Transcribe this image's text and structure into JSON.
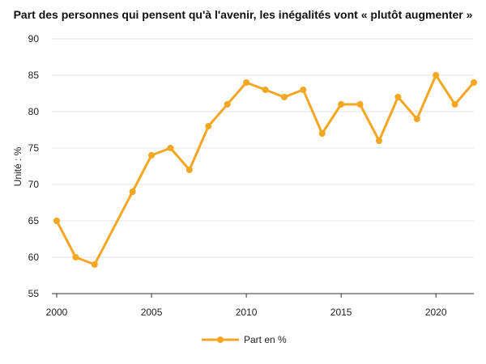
{
  "chart_data": {
    "type": "line",
    "title": "Part des personnes qui pensent qu'à l'avenir, les inégalités vont « plutôt augmenter »",
    "xlabel": "",
    "ylabel": "Unité : %",
    "ylim": [
      55,
      90
    ],
    "yticks": [
      55,
      60,
      65,
      70,
      75,
      80,
      85,
      90
    ],
    "xlim": [
      2000,
      2022
    ],
    "xticks": [
      2000,
      2005,
      2010,
      2015,
      2020
    ],
    "grid": "horizontal",
    "legend_position": "bottom-center",
    "color": "#f5a623",
    "series": [
      {
        "name": "Part en %",
        "points": [
          [
            2000,
            65
          ],
          [
            2001,
            60
          ],
          [
            2002,
            59
          ],
          [
            2004,
            69
          ],
          [
            2005,
            74
          ],
          [
            2006,
            75
          ],
          [
            2007,
            72
          ],
          [
            2008,
            78
          ],
          [
            2009,
            81
          ],
          [
            2010,
            84
          ],
          [
            2011,
            83
          ],
          [
            2012,
            82
          ],
          [
            2013,
            83
          ],
          [
            2014,
            77
          ],
          [
            2015,
            81
          ],
          [
            2016,
            81
          ],
          [
            2017,
            76
          ],
          [
            2018,
            82
          ],
          [
            2019,
            79
          ],
          [
            2020,
            85
          ],
          [
            2021,
            81
          ],
          [
            2022,
            84
          ]
        ]
      }
    ]
  }
}
